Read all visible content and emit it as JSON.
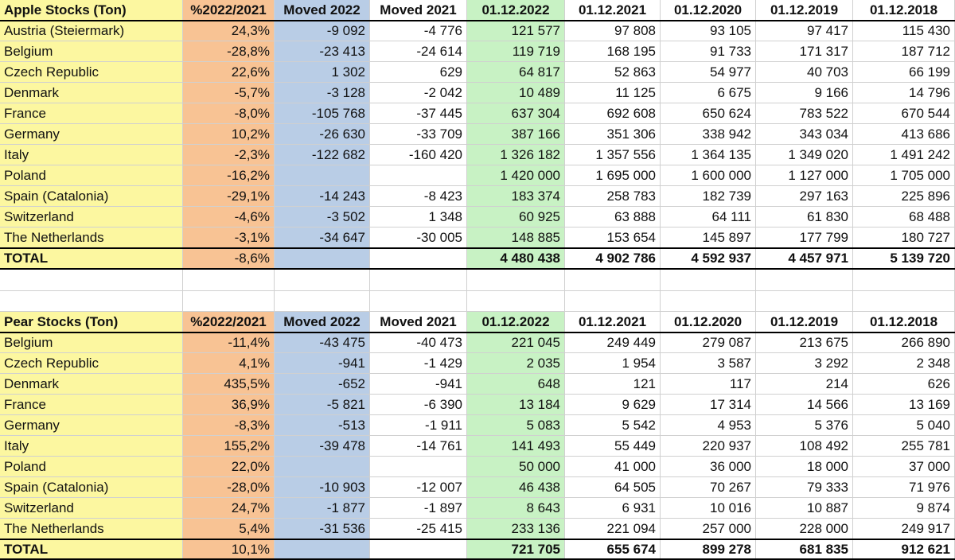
{
  "tables": [
    {
      "header": [
        "Apple Stocks (Ton)",
        "%2022/2021",
        "Moved 2022",
        "Moved 2021",
        "01.12.2022",
        "01.12.2021",
        "01.12.2020",
        "01.12.2019",
        "01.12.2018"
      ],
      "rows": [
        [
          "Austria (Steiermark)",
          "24,3%",
          "-9 092",
          "-4 776",
          "121 577",
          "97 808",
          "93 105",
          "97 417",
          "115 430"
        ],
        [
          "Belgium",
          "-28,8%",
          "-23 413",
          "-24 614",
          "119 719",
          "168 195",
          "91 733",
          "171 317",
          "187 712"
        ],
        [
          "Czech Republic",
          "22,6%",
          "1 302",
          "629",
          "64 817",
          "52 863",
          "54 977",
          "40 703",
          "66 199"
        ],
        [
          "Denmark",
          "-5,7%",
          "-3 128",
          "-2 042",
          "10 489",
          "11 125",
          "6 675",
          "9 166",
          "14 796"
        ],
        [
          "France",
          "-8,0%",
          "-105 768",
          "-37 445",
          "637 304",
          "692 608",
          "650 624",
          "783 522",
          "670 544"
        ],
        [
          "Germany",
          "10,2%",
          "-26 630",
          "-33 709",
          "387 166",
          "351 306",
          "338 942",
          "343 034",
          "413 686"
        ],
        [
          "Italy",
          "-2,3%",
          "-122 682",
          "-160 420",
          "1 326 182",
          "1 357 556",
          "1 364 135",
          "1 349 020",
          "1 491 242"
        ],
        [
          "Poland",
          "-16,2%",
          null,
          null,
          "1 420 000",
          "1 695 000",
          "1 600 000",
          "1 127 000",
          "1 705 000"
        ],
        [
          "Spain (Catalonia)",
          "-29,1%",
          "-14 243",
          "-8 423",
          "183 374",
          "258 783",
          "182 739",
          "297 163",
          "225 896"
        ],
        [
          "Switzerland",
          "-4,6%",
          "-3 502",
          "1 348",
          "60 925",
          "63 888",
          "64 111",
          "61 830",
          "68 488"
        ],
        [
          "The Netherlands",
          "-3,1%",
          "-34 647",
          "-30 005",
          "148 885",
          "153 654",
          "145 897",
          "177 799",
          "180 727"
        ]
      ],
      "total": [
        "TOTAL",
        "-8,6%",
        null,
        null,
        "4 480 438",
        "4 902 786",
        "4 592 937",
        "4 457 971",
        "5 139 720"
      ]
    },
    {
      "header": [
        "Pear Stocks (Ton)",
        "%2022/2021",
        "Moved 2022",
        "Moved 2021",
        "01.12.2022",
        "01.12.2021",
        "01.12.2020",
        "01.12.2019",
        "01.12.2018"
      ],
      "rows": [
        [
          "Belgium",
          "-11,4%",
          "-43 475",
          "-40 473",
          "221 045",
          "249 449",
          "279 087",
          "213 675",
          "266 890"
        ],
        [
          "Czech Republic",
          "4,1%",
          "-941",
          "-1 429",
          "2 035",
          "1 954",
          "3 587",
          "3 292",
          "2 348"
        ],
        [
          "Denmark",
          "435,5%",
          "-652",
          "-941",
          "648",
          "121",
          "117",
          "214",
          "626"
        ],
        [
          "France",
          "36,9%",
          "-5 821",
          "-6 390",
          "13 184",
          "9 629",
          "17 314",
          "14 566",
          "13 169"
        ],
        [
          "Germany",
          "-8,3%",
          "-513",
          "-1 911",
          "5 083",
          "5 542",
          "4 953",
          "5 376",
          "5 040"
        ],
        [
          "Italy",
          "155,2%",
          "-39 478",
          "-14 761",
          "141 493",
          "55 449",
          "220 937",
          "108 492",
          "255 781"
        ],
        [
          "Poland",
          "22,0%",
          null,
          null,
          "50 000",
          "41 000",
          "36 000",
          "18 000",
          "37 000"
        ],
        [
          "Spain (Catalonia)",
          "-28,0%",
          "-10 903",
          "-12 007",
          "46 438",
          "64 505",
          "70 267",
          "79 333",
          "71 976"
        ],
        [
          "Switzerland",
          "24,7%",
          "-1 877",
          "-1 897",
          "8 643",
          "6 931",
          "10 016",
          "10 887",
          "9 874"
        ],
        [
          "The Netherlands",
          "5,4%",
          "-31 536",
          "-25 415",
          "233 136",
          "221 094",
          "257 000",
          "228 000",
          "249 917"
        ]
      ],
      "total": [
        "TOTAL",
        "10,1%",
        null,
        null,
        "721 705",
        "655 674",
        "899 278",
        "681 835",
        "912 621"
      ]
    }
  ]
}
